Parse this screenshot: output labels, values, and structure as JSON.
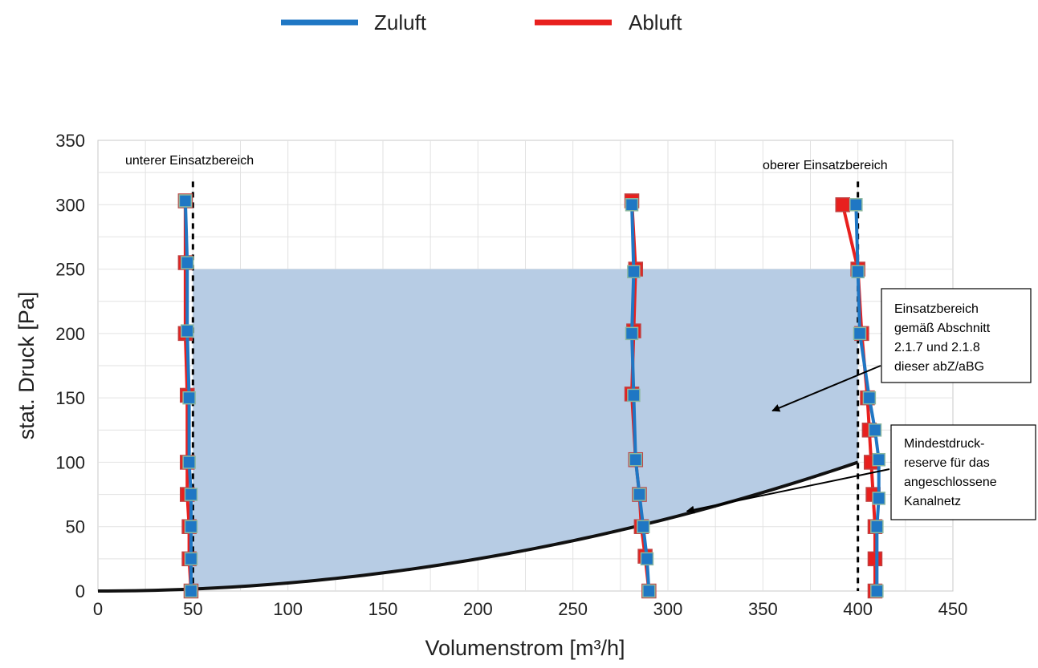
{
  "chart_data": {
    "type": "line",
    "xlabel": "Volumenstrom [m³/h]",
    "ylabel": "stat. Druck [Pa]",
    "xlim": [
      0,
      450
    ],
    "ylim": [
      0,
      350
    ],
    "xticks": [
      0,
      50,
      100,
      150,
      200,
      250,
      300,
      350,
      400,
      450
    ],
    "yticks": [
      0,
      50,
      100,
      150,
      200,
      250,
      300,
      350
    ],
    "grid": true,
    "legend_position": "top",
    "series": [
      {
        "name": "Zuluft",
        "color": "#1F77C4",
        "lines": [
          [
            [
              49,
              0
            ],
            [
              49,
              25
            ],
            [
              49,
              50
            ],
            [
              49,
              75
            ],
            [
              48,
              100
            ],
            [
              48,
              150
            ],
            [
              47,
              202
            ],
            [
              47,
              255
            ],
            [
              46,
              303
            ]
          ],
          [
            [
              290,
              0
            ],
            [
              289,
              25
            ],
            [
              287,
              50
            ],
            [
              285,
              75
            ],
            [
              283,
              102
            ],
            [
              282,
              152
            ],
            [
              281,
              200
            ],
            [
              282,
              248
            ],
            [
              281,
              300
            ]
          ],
          [
            [
              410,
              0
            ],
            [
              410,
              50
            ],
            [
              411,
              72
            ],
            [
              411,
              102
            ],
            [
              409,
              125
            ],
            [
              406,
              150
            ],
            [
              401,
              200
            ],
            [
              400,
              248
            ],
            [
              399,
              300
            ]
          ]
        ]
      },
      {
        "name": "Abluft",
        "color": "#E8201E",
        "lines": [
          [
            [
              49,
              0
            ],
            [
              48,
              25
            ],
            [
              48,
              50
            ],
            [
              47,
              75
            ],
            [
              47,
              100
            ],
            [
              47,
              152
            ],
            [
              46,
              200
            ],
            [
              46,
              255
            ],
            [
              46,
              303
            ]
          ],
          [
            [
              290,
              0
            ],
            [
              288,
              27
            ],
            [
              286,
              50
            ],
            [
              285,
              75
            ],
            [
              283,
              102
            ],
            [
              281,
              153
            ],
            [
              282,
              202
            ],
            [
              283,
              250
            ],
            [
              281,
              303
            ]
          ],
          [
            [
              409,
              0
            ],
            [
              409,
              25
            ],
            [
              409,
              50
            ],
            [
              408,
              75
            ],
            [
              407,
              100
            ],
            [
              406,
              125
            ],
            [
              405,
              150
            ],
            [
              402,
              200
            ],
            [
              400,
              250
            ],
            [
              392,
              300
            ]
          ]
        ]
      }
    ],
    "reference_lines": [
      {
        "x": 50,
        "label": "unterer Einsatzbereich"
      },
      {
        "x": 400,
        "label": "oberer Einsatzbereich"
      }
    ],
    "min_pressure_curve": {
      "formula": "y = 100 * (x/400)^2",
      "x_range": [
        0,
        400
      ]
    },
    "operating_area": {
      "x_range": [
        50,
        400
      ],
      "y_top": 250,
      "color": "#B7CCE4"
    },
    "annotations": [
      {
        "text_lines": [
          "Einsatzbereich",
          "gemäß Abschnitt",
          "2.1.7 und 2.1.8",
          "dieser abZ/aBG"
        ],
        "points_to": [
          355,
          140
        ]
      },
      {
        "text_lines": [
          "Mindestdruck-",
          "reserve für das",
          "angeschlossene",
          "Kanalnetz"
        ],
        "points_to": [
          310,
          62
        ]
      }
    ]
  }
}
